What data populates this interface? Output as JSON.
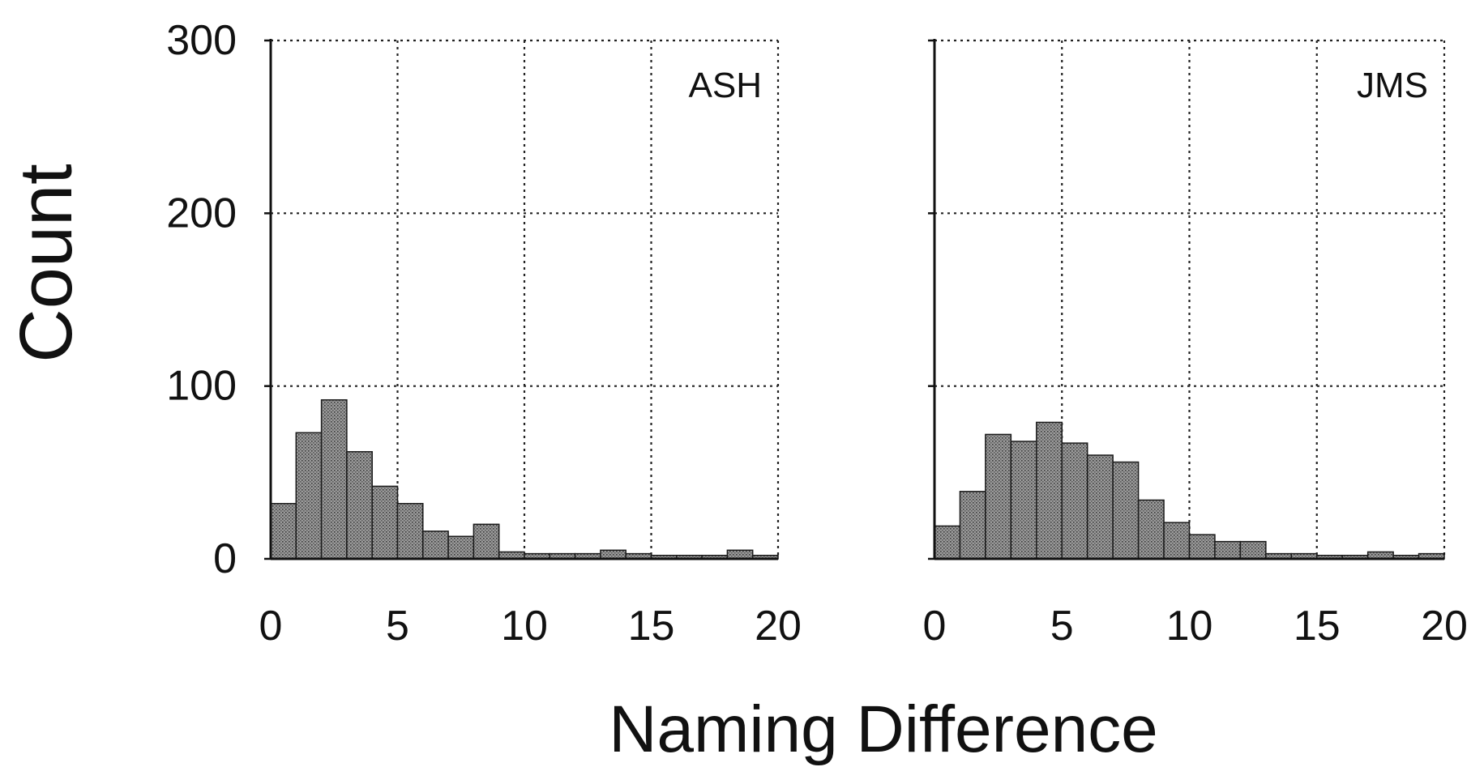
{
  "figure": {
    "ylabel": "Count",
    "xlabel": "Naming Difference"
  },
  "colors": {
    "bar_fill": "#9a9a9a",
    "bar_stroke": "#1a1a1a",
    "grid": "#222222",
    "axis": "#111111"
  },
  "chart_data": [
    {
      "type": "bar",
      "panel_label": "ASH",
      "bin_starts": [
        0,
        1,
        2,
        3,
        4,
        5,
        6,
        7,
        8,
        9,
        10,
        11,
        12,
        13,
        14,
        15,
        16,
        17,
        18,
        19
      ],
      "bin_width": 1,
      "values": [
        32,
        73,
        92,
        62,
        42,
        32,
        16,
        13,
        20,
        4,
        3,
        3,
        3,
        5,
        3,
        2,
        2,
        2,
        5,
        2
      ],
      "xlim": [
        0,
        20
      ],
      "ylim": [
        0,
        300
      ],
      "xticks": [
        "0",
        "5",
        "10",
        "15",
        "20"
      ],
      "yticks": [
        "0",
        "100",
        "200",
        "300"
      ],
      "grid": true
    },
    {
      "type": "bar",
      "panel_label": "JMS",
      "bin_starts": [
        0,
        1,
        2,
        3,
        4,
        5,
        6,
        7,
        8,
        9,
        10,
        11,
        12,
        13,
        14,
        15,
        16,
        17,
        18,
        19
      ],
      "bin_width": 1,
      "values": [
        19,
        39,
        72,
        68,
        79,
        67,
        60,
        56,
        34,
        21,
        14,
        10,
        10,
        3,
        3,
        2,
        2,
        4,
        2,
        3
      ],
      "xlim": [
        0,
        20
      ],
      "ylim": [
        0,
        300
      ],
      "xticks": [
        "0",
        "5",
        "10",
        "15",
        "20"
      ],
      "yticks": [],
      "grid": true
    }
  ]
}
